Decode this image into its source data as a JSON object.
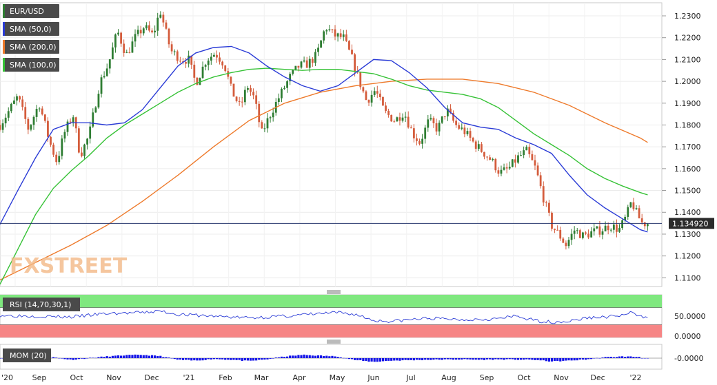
{
  "watermark": "FXSTREET",
  "colors": {
    "bull": "#2e7d32",
    "bear": "#d45c3c",
    "sma50": "#2a3bd6",
    "sma200": "#ee7a2b",
    "sma100": "#36c236",
    "price_line": "#24356b",
    "rsi": "#2a3bd6",
    "mom": "#1414e8",
    "ob_zone": "#7fe87f",
    "os_zone": "#f68585",
    "tag_bg": "#4a4a4a"
  },
  "chart_data": [
    {
      "type": "candlestick",
      "legend": [
        {
          "label": "EUR/USD",
          "color": "#2e7d32"
        },
        {
          "label": "SMA (50,0)",
          "color": "#2a3bd6"
        },
        {
          "label": "SMA (200,0)",
          "color": "#ee7a2b"
        },
        {
          "label": "SMA (100,0)",
          "color": "#36c236"
        }
      ],
      "ylim": [
        1.106,
        1.236
      ],
      "y_ticks": [
        "1.1100",
        "1.1200",
        "1.1300",
        "1.1400",
        "1.1500",
        "1.1600",
        "1.1700",
        "1.1800",
        "1.1900",
        "1.2000",
        "1.2100",
        "1.2200",
        "1.2300"
      ],
      "current_price": "1.134920",
      "current_value": 1.13492,
      "grid": true,
      "x_labels": [
        "'20",
        "Sep",
        "Oct",
        "Nov",
        "Dec",
        "'21",
        "Feb",
        "Mar",
        "Apr",
        "May",
        "Jun",
        "Jul",
        "Aug",
        "Sep",
        "Oct",
        "Nov",
        "Dec",
        "'22"
      ],
      "price_path": [
        {
          "x": 0.0,
          "y": 1.18
        },
        {
          "x": 1.0,
          "y": 1.193
        },
        {
          "x": 1.6,
          "y": 1.178
        },
        {
          "x": 2.2,
          "y": 1.19
        },
        {
          "x": 2.8,
          "y": 1.172
        },
        {
          "x": 3.2,
          "y": 1.163
        },
        {
          "x": 3.6,
          "y": 1.176
        },
        {
          "x": 4.1,
          "y": 1.185
        },
        {
          "x": 4.5,
          "y": 1.166
        },
        {
          "x": 5.0,
          "y": 1.175
        },
        {
          "x": 5.6,
          "y": 1.199
        },
        {
          "x": 6.1,
          "y": 1.208
        },
        {
          "x": 6.6,
          "y": 1.223
        },
        {
          "x": 7.1,
          "y": 1.212
        },
        {
          "x": 7.6,
          "y": 1.22
        },
        {
          "x": 8.1,
          "y": 1.225
        },
        {
          "x": 8.6,
          "y": 1.221
        },
        {
          "x": 9.0,
          "y": 1.2325
        },
        {
          "x": 9.6,
          "y": 1.214
        },
        {
          "x": 10.2,
          "y": 1.21
        },
        {
          "x": 10.6,
          "y": 1.21
        },
        {
          "x": 11.0,
          "y": 1.199
        },
        {
          "x": 11.6,
          "y": 1.21
        },
        {
          "x": 12.1,
          "y": 1.213
        },
        {
          "x": 12.6,
          "y": 1.208
        },
        {
          "x": 13.0,
          "y": 1.196
        },
        {
          "x": 13.5,
          "y": 1.188
        },
        {
          "x": 13.9,
          "y": 1.198
        },
        {
          "x": 14.3,
          "y": 1.192
        },
        {
          "x": 14.7,
          "y": 1.176
        },
        {
          "x": 15.2,
          "y": 1.185
        },
        {
          "x": 15.7,
          "y": 1.193
        },
        {
          "x": 16.3,
          "y": 1.202
        },
        {
          "x": 16.8,
          "y": 1.207
        },
        {
          "x": 17.3,
          "y": 1.208
        },
        {
          "x": 17.8,
          "y": 1.212
        },
        {
          "x": 18.3,
          "y": 1.225
        },
        {
          "x": 18.8,
          "y": 1.221
        },
        {
          "x": 19.3,
          "y": 1.22
        },
        {
          "x": 19.8,
          "y": 1.21
        },
        {
          "x": 20.2,
          "y": 1.2
        },
        {
          "x": 20.6,
          "y": 1.191
        },
        {
          "x": 21.1,
          "y": 1.196
        },
        {
          "x": 21.6,
          "y": 1.186
        },
        {
          "x": 22.2,
          "y": 1.182
        },
        {
          "x": 22.7,
          "y": 1.186
        },
        {
          "x": 23.2,
          "y": 1.176
        },
        {
          "x": 23.6,
          "y": 1.172
        },
        {
          "x": 24.1,
          "y": 1.182
        },
        {
          "x": 24.6,
          "y": 1.178
        },
        {
          "x": 25.1,
          "y": 1.187
        },
        {
          "x": 25.6,
          "y": 1.18
        },
        {
          "x": 26.1,
          "y": 1.177
        },
        {
          "x": 26.6,
          "y": 1.172
        },
        {
          "x": 27.1,
          "y": 1.168
        },
        {
          "x": 27.6,
          "y": 1.164
        },
        {
          "x": 28.1,
          "y": 1.158
        },
        {
          "x": 28.6,
          "y": 1.16
        },
        {
          "x": 29.1,
          "y": 1.165
        },
        {
          "x": 29.6,
          "y": 1.168
        },
        {
          "x": 30.1,
          "y": 1.16
        },
        {
          "x": 30.6,
          "y": 1.145
        },
        {
          "x": 31.0,
          "y": 1.134
        },
        {
          "x": 31.4,
          "y": 1.13
        },
        {
          "x": 31.8,
          "y": 1.125
        },
        {
          "x": 32.3,
          "y": 1.132
        },
        {
          "x": 32.8,
          "y": 1.129
        },
        {
          "x": 33.3,
          "y": 1.131
        },
        {
          "x": 33.8,
          "y": 1.132
        },
        {
          "x": 34.3,
          "y": 1.134
        },
        {
          "x": 34.8,
          "y": 1.132
        },
        {
          "x": 35.2,
          "y": 1.138
        },
        {
          "x": 35.5,
          "y": 1.145
        },
        {
          "x": 35.8,
          "y": 1.139
        },
        {
          "x": 36.1,
          "y": 1.135
        },
        {
          "x": 36.4,
          "y": 1.13492
        }
      ],
      "sma50": [
        {
          "x": 0.0,
          "y": 1.1345
        },
        {
          "x": 1.0,
          "y": 1.15
        },
        {
          "x": 2.0,
          "y": 1.165
        },
        {
          "x": 3.0,
          "y": 1.178
        },
        {
          "x": 4.0,
          "y": 1.181
        },
        {
          "x": 5.0,
          "y": 1.181
        },
        {
          "x": 6.0,
          "y": 1.18
        },
        {
          "x": 7.0,
          "y": 1.181
        },
        {
          "x": 8.0,
          "y": 1.187
        },
        {
          "x": 9.0,
          "y": 1.197
        },
        {
          "x": 10.0,
          "y": 1.207
        },
        {
          "x": 11.0,
          "y": 1.213
        },
        {
          "x": 12.0,
          "y": 1.2155
        },
        {
          "x": 13.0,
          "y": 1.216
        },
        {
          "x": 14.0,
          "y": 1.213
        },
        {
          "x": 15.0,
          "y": 1.207
        },
        {
          "x": 16.0,
          "y": 1.202
        },
        {
          "x": 17.0,
          "y": 1.198
        },
        {
          "x": 18.0,
          "y": 1.1955
        },
        {
          "x": 19.0,
          "y": 1.198
        },
        {
          "x": 20.0,
          "y": 1.204
        },
        {
          "x": 21.0,
          "y": 1.21
        },
        {
          "x": 22.0,
          "y": 1.2095
        },
        {
          "x": 23.0,
          "y": 1.204
        },
        {
          "x": 24.0,
          "y": 1.197
        },
        {
          "x": 25.0,
          "y": 1.188
        },
        {
          "x": 26.0,
          "y": 1.181
        },
        {
          "x": 27.0,
          "y": 1.179
        },
        {
          "x": 28.0,
          "y": 1.178
        },
        {
          "x": 29.0,
          "y": 1.174
        },
        {
          "x": 30.0,
          "y": 1.171
        },
        {
          "x": 31.0,
          "y": 1.167
        },
        {
          "x": 32.0,
          "y": 1.157
        },
        {
          "x": 33.0,
          "y": 1.148
        },
        {
          "x": 34.0,
          "y": 1.142
        },
        {
          "x": 35.0,
          "y": 1.137
        },
        {
          "x": 36.0,
          "y": 1.132
        },
        {
          "x": 36.4,
          "y": 1.131
        }
      ],
      "sma100": [
        {
          "x": 0.0,
          "y": 1.107
        },
        {
          "x": 1.0,
          "y": 1.123
        },
        {
          "x": 2.0,
          "y": 1.139
        },
        {
          "x": 3.0,
          "y": 1.151
        },
        {
          "x": 4.0,
          "y": 1.159
        },
        {
          "x": 5.0,
          "y": 1.166
        },
        {
          "x": 6.0,
          "y": 1.174
        },
        {
          "x": 7.0,
          "y": 1.18
        },
        {
          "x": 8.0,
          "y": 1.185
        },
        {
          "x": 9.0,
          "y": 1.19
        },
        {
          "x": 10.0,
          "y": 1.195
        },
        {
          "x": 11.0,
          "y": 1.199
        },
        {
          "x": 12.0,
          "y": 1.202
        },
        {
          "x": 13.0,
          "y": 1.204
        },
        {
          "x": 14.0,
          "y": 1.2055
        },
        {
          "x": 15.0,
          "y": 1.206
        },
        {
          "x": 16.0,
          "y": 1.2055
        },
        {
          "x": 17.0,
          "y": 1.205
        },
        {
          "x": 18.0,
          "y": 1.2055
        },
        {
          "x": 19.0,
          "y": 1.2055
        },
        {
          "x": 20.0,
          "y": 1.2045
        },
        {
          "x": 21.0,
          "y": 1.2035
        },
        {
          "x": 22.0,
          "y": 1.201
        },
        {
          "x": 23.0,
          "y": 1.198
        },
        {
          "x": 24.0,
          "y": 1.196
        },
        {
          "x": 25.0,
          "y": 1.195
        },
        {
          "x": 26.0,
          "y": 1.194
        },
        {
          "x": 27.0,
          "y": 1.192
        },
        {
          "x": 28.0,
          "y": 1.188
        },
        {
          "x": 29.0,
          "y": 1.182
        },
        {
          "x": 30.0,
          "y": 1.176
        },
        {
          "x": 31.0,
          "y": 1.171
        },
        {
          "x": 32.0,
          "y": 1.166
        },
        {
          "x": 33.0,
          "y": 1.16
        },
        {
          "x": 34.0,
          "y": 1.1555
        },
        {
          "x": 35.0,
          "y": 1.152
        },
        {
          "x": 36.0,
          "y": 1.149
        },
        {
          "x": 36.4,
          "y": 1.148
        }
      ],
      "sma200": [
        {
          "x": 0.0,
          "y": 1.109
        },
        {
          "x": 2.0,
          "y": 1.117
        },
        {
          "x": 4.0,
          "y": 1.125
        },
        {
          "x": 6.0,
          "y": 1.134
        },
        {
          "x": 8.0,
          "y": 1.145
        },
        {
          "x": 10.0,
          "y": 1.157
        },
        {
          "x": 12.0,
          "y": 1.17
        },
        {
          "x": 14.0,
          "y": 1.182
        },
        {
          "x": 16.0,
          "y": 1.19
        },
        {
          "x": 18.0,
          "y": 1.195
        },
        {
          "x": 20.0,
          "y": 1.198
        },
        {
          "x": 22.0,
          "y": 1.2
        },
        {
          "x": 24.0,
          "y": 1.201
        },
        {
          "x": 26.0,
          "y": 1.201
        },
        {
          "x": 28.0,
          "y": 1.199
        },
        {
          "x": 30.0,
          "y": 1.195
        },
        {
          "x": 32.0,
          "y": 1.189
        },
        {
          "x": 34.0,
          "y": 1.181
        },
        {
          "x": 36.0,
          "y": 1.174
        },
        {
          "x": 36.4,
          "y": 1.172
        }
      ]
    },
    {
      "type": "line",
      "title": "RSI (14,70,30,1)",
      "ylim": [
        0,
        100
      ],
      "y_ticks": [
        "50.0000",
        "0.0000"
      ],
      "overbought": 70,
      "oversold": 30,
      "values": [
        {
          "x": 0.0,
          "y": 52
        },
        {
          "x": 2.0,
          "y": 50
        },
        {
          "x": 4.0,
          "y": 48
        },
        {
          "x": 6.0,
          "y": 56
        },
        {
          "x": 8.0,
          "y": 58
        },
        {
          "x": 9.0,
          "y": 62
        },
        {
          "x": 10.0,
          "y": 54
        },
        {
          "x": 12.0,
          "y": 50
        },
        {
          "x": 14.0,
          "y": 46
        },
        {
          "x": 16.0,
          "y": 50
        },
        {
          "x": 18.0,
          "y": 56
        },
        {
          "x": 19.0,
          "y": 58
        },
        {
          "x": 20.0,
          "y": 54
        },
        {
          "x": 21.0,
          "y": 40
        },
        {
          "x": 22.0,
          "y": 38
        },
        {
          "x": 24.0,
          "y": 45
        },
        {
          "x": 26.0,
          "y": 42
        },
        {
          "x": 28.0,
          "y": 44
        },
        {
          "x": 29.0,
          "y": 50
        },
        {
          "x": 30.0,
          "y": 40
        },
        {
          "x": 31.0,
          "y": 36
        },
        {
          "x": 32.0,
          "y": 38
        },
        {
          "x": 33.0,
          "y": 46
        },
        {
          "x": 34.0,
          "y": 48
        },
        {
          "x": 35.0,
          "y": 52
        },
        {
          "x": 35.5,
          "y": 58
        },
        {
          "x": 36.0,
          "y": 48
        },
        {
          "x": 36.4,
          "y": 50
        }
      ]
    },
    {
      "type": "bar",
      "title": "MOM (20)",
      "y_ticks": [
        "-0.0000"
      ],
      "values": [
        {
          "x": 2.0,
          "y": -0.003
        },
        {
          "x": 3.0,
          "y": 0.002
        },
        {
          "x": 4.0,
          "y": -0.004
        },
        {
          "x": 6.0,
          "y": 0.004
        },
        {
          "x": 7.0,
          "y": 0.007
        },
        {
          "x": 8.0,
          "y": 0.008
        },
        {
          "x": 9.0,
          "y": 0.005
        },
        {
          "x": 10.0,
          "y": -0.004
        },
        {
          "x": 11.0,
          "y": -0.006
        },
        {
          "x": 12.0,
          "y": -0.002
        },
        {
          "x": 13.0,
          "y": -0.004
        },
        {
          "x": 14.0,
          "y": -0.007
        },
        {
          "x": 15.0,
          "y": -0.003
        },
        {
          "x": 16.0,
          "y": 0.004
        },
        {
          "x": 17.0,
          "y": 0.008
        },
        {
          "x": 18.0,
          "y": 0.006
        },
        {
          "x": 19.0,
          "y": 0.004
        },
        {
          "x": 20.0,
          "y": -0.005
        },
        {
          "x": 21.0,
          "y": -0.009
        },
        {
          "x": 22.0,
          "y": -0.006
        },
        {
          "x": 24.0,
          "y": -0.004
        },
        {
          "x": 26.0,
          "y": -0.003
        },
        {
          "x": 27.0,
          "y": -0.004
        },
        {
          "x": 28.0,
          "y": -0.003
        },
        {
          "x": 30.0,
          "y": -0.004
        },
        {
          "x": 31.0,
          "y": -0.008
        },
        {
          "x": 32.0,
          "y": -0.006
        },
        {
          "x": 33.0,
          "y": -0.003
        },
        {
          "x": 34.0,
          "y": 0.002
        },
        {
          "x": 35.0,
          "y": 0.004
        },
        {
          "x": 36.0,
          "y": 0.003
        }
      ]
    }
  ]
}
